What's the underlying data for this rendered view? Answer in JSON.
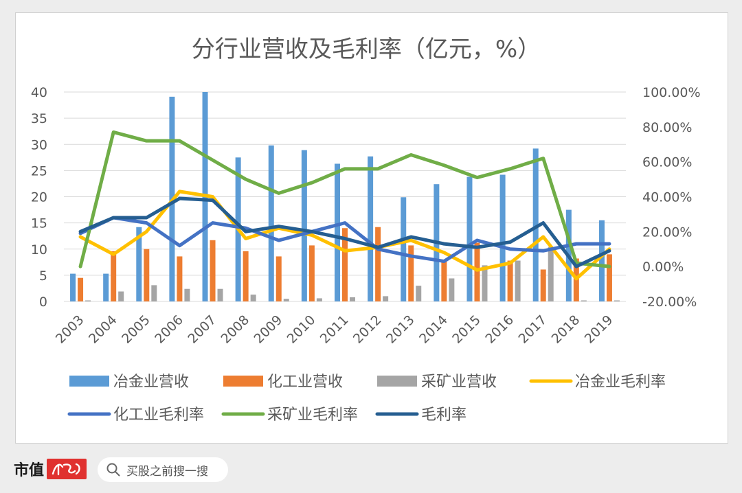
{
  "chart_data": {
    "type": "bar",
    "title": "分行业营收及毛利率（亿元，%）",
    "categories": [
      "2003",
      "2004",
      "2005",
      "2006",
      "2007",
      "2008",
      "2009",
      "2010",
      "2011",
      "2012",
      "2013",
      "2014",
      "2015",
      "2016",
      "2017",
      "2018",
      "2019"
    ],
    "y_left": {
      "range": [
        0,
        40
      ],
      "ticks": [
        "0",
        "5",
        "10",
        "15",
        "20",
        "25",
        "30",
        "35",
        "40"
      ]
    },
    "y_right": {
      "range": [
        -20,
        100
      ],
      "ticks": [
        "-20.00%",
        "0.00%",
        "20.00%",
        "40.00%",
        "60.00%",
        "80.00%",
        "100.00%"
      ]
    },
    "grid": true,
    "legend_position": "bottom",
    "bar_series": [
      {
        "name": "冶金业营收",
        "color": "#5b9bd5",
        "values": [
          5.3,
          5.3,
          14.2,
          39.1,
          40.0,
          27.5,
          29.8,
          28.9,
          26.3,
          27.7,
          19.9,
          22.4,
          23.8,
          24.2,
          29.2,
          17.5,
          15.5
        ]
      },
      {
        "name": "化工业营收",
        "color": "#ed7d31",
        "values": [
          4.5,
          9.6,
          10.0,
          8.6,
          11.7,
          9.6,
          8.6,
          10.7,
          14.0,
          14.2,
          10.7,
          8.0,
          11.2,
          7.8,
          6.1,
          8.2,
          9.0
        ]
      },
      {
        "name": "采矿业营收",
        "color": "#a5a5a5",
        "values": [
          0.2,
          1.9,
          3.1,
          2.4,
          2.4,
          1.3,
          0.5,
          0.6,
          0.8,
          1.0,
          3.0,
          4.4,
          6.9,
          7.8,
          10.4,
          0.2,
          0.2
        ]
      }
    ],
    "line_series": [
      {
        "name": "冶金业毛利率",
        "color": "#ffc000",
        "values": [
          17,
          7,
          20,
          43,
          40,
          16,
          22,
          18,
          9,
          11,
          15,
          8,
          -2,
          2,
          17,
          -7,
          10
        ]
      },
      {
        "name": "化工业毛利率",
        "color": "#4472c4",
        "values": [
          19,
          28,
          25,
          12,
          25,
          22,
          15,
          20,
          25,
          10,
          6,
          3,
          15,
          10,
          9,
          13,
          13
        ]
      },
      {
        "name": "采矿业毛利率",
        "color": "#70ad47",
        "values": [
          0,
          77,
          72,
          72,
          61,
          50,
          42,
          48,
          56,
          56,
          64,
          58,
          51,
          56,
          62,
          2,
          0
        ]
      },
      {
        "name": "毛利率",
        "color": "#255e91",
        "values": [
          20,
          28,
          28,
          39,
          38,
          20,
          23,
          20,
          16,
          11,
          17,
          13,
          11,
          14,
          25,
          0,
          9
        ]
      }
    ]
  },
  "footer": {
    "brand_name": "市值",
    "search_placeholder": "买股之前搜一搜",
    "colors": {
      "logo_bg": "#e0312f"
    }
  }
}
